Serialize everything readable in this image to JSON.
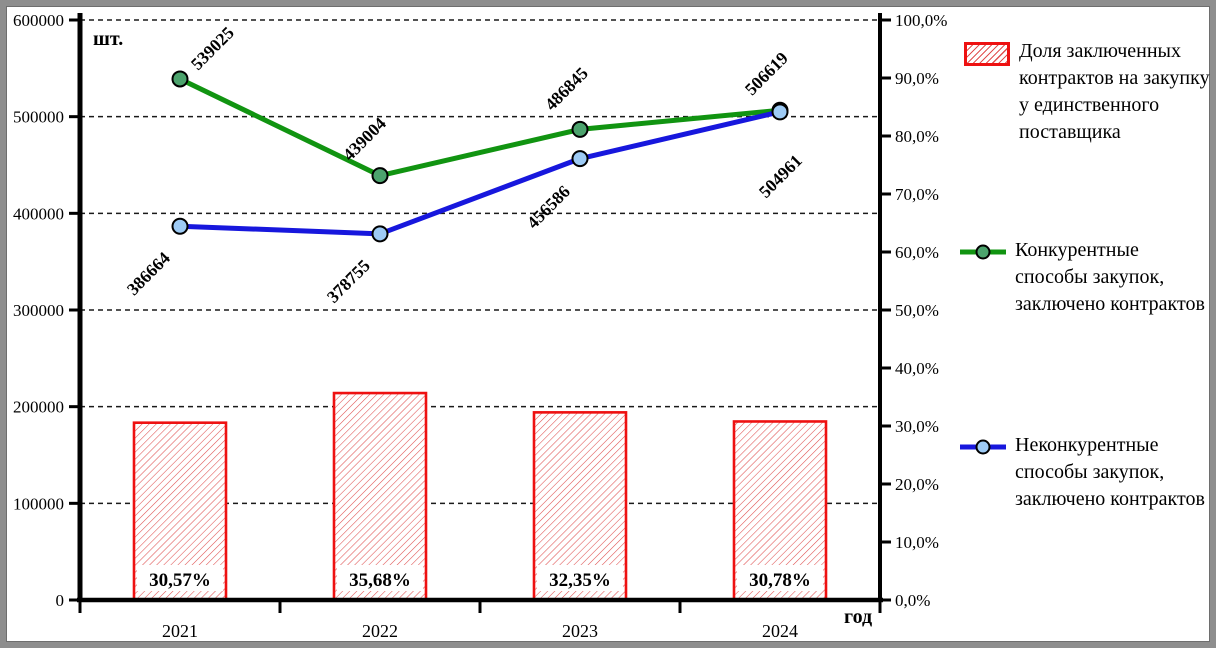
{
  "chart_data": {
    "type": "combo-bar-line",
    "categories": [
      "2021",
      "2022",
      "2023",
      "2024"
    ],
    "x_axis_label": "год",
    "left_axis": {
      "unit_label": "шт.",
      "min": 0,
      "max": 600000,
      "step": 100000,
      "ticks": [
        "600000",
        "500000",
        "400000",
        "300000",
        "200000",
        "100000",
        "0"
      ]
    },
    "right_axis": {
      "min": 0,
      "max": 100,
      "step": 10,
      "ticks": [
        "100,0%",
        "90,0%",
        "80,0%",
        "70,0%",
        "60,0%",
        "50,0%",
        "40,0%",
        "30,0%",
        "20,0%",
        "10,0%",
        "0,0%"
      ]
    },
    "grid": {
      "style": "dashed",
      "orientation": "horizontal"
    },
    "bar_series": {
      "name": "Доля заключенных контрактов на закупку у единственного поставщика",
      "axis": "right",
      "values_pct": [
        30.57,
        35.68,
        32.35,
        30.78
      ],
      "value_labels": [
        "30,57%",
        "35,68%",
        "32,35%",
        "30,78%"
      ],
      "border_color": "#ee1111",
      "hatch_color": "#e05050"
    },
    "line_series": [
      {
        "name": "Конкурентные способы закупок, заключено контрактов",
        "axis": "left",
        "values": [
          539025,
          439004,
          486845,
          506619
        ],
        "value_labels": [
          "539025",
          "439004",
          "486845",
          "506619"
        ],
        "color": "#119411",
        "marker_fill": "#4ca36d"
      },
      {
        "name": "Неконкурентные способы закупок, заключено контрактов",
        "axis": "left",
        "values": [
          386664,
          378755,
          456586,
          504961
        ],
        "value_labels": [
          "386664",
          "378755",
          "456586",
          "504961"
        ],
        "color": "#1717dd",
        "marker_fill": "#9ecbf5"
      }
    ]
  },
  "legend": {
    "items": [
      {
        "label": "Доля заключенных контрактов на закупку у единственного поставщика"
      },
      {
        "label": "Конкурентные способы закупок, заключено контрактов"
      },
      {
        "label": "Неконкурентные способы закупок, заключено контрактов"
      }
    ]
  }
}
